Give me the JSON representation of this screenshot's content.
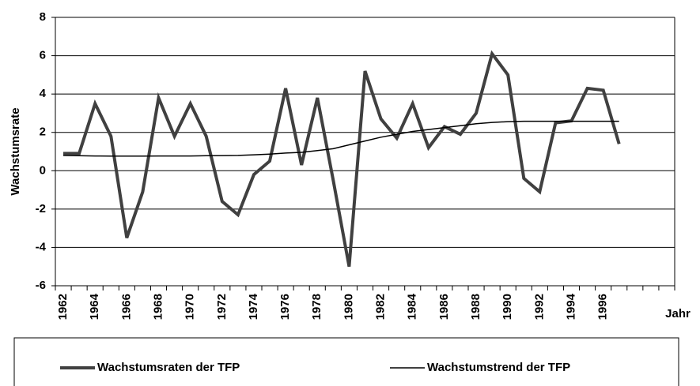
{
  "chart_data": {
    "type": "line",
    "y_label": "Wachstumsrate",
    "x_label": "Jahr",
    "categories": [
      "1962",
      null,
      "1964",
      null,
      "1966",
      null,
      "1968",
      null,
      "1970",
      null,
      "1972",
      null,
      "1974",
      null,
      "1976",
      null,
      "1978",
      null,
      "1980",
      null,
      "1982",
      null,
      "1984",
      null,
      "1986",
      null,
      "1988",
      null,
      "1990",
      null,
      "1992",
      null,
      "1994",
      null,
      "1996",
      null,
      null,
      null,
      null
    ],
    "series": [
      {
        "name": "Wachstumsraten der TFP",
        "color": "#404040",
        "width": 4,
        "values": [
          0.9,
          0.9,
          3.5,
          1.8,
          -3.5,
          -1.1,
          3.8,
          1.8,
          3.5,
          1.8,
          -1.6,
          -2.3,
          -0.2,
          0.5,
          4.3,
          0.3,
          3.8,
          -0.5,
          -5.0,
          5.2,
          2.7,
          1.7,
          3.5,
          1.2,
          2.3,
          1.9,
          3.0,
          6.1,
          5.0,
          -0.4,
          -1.1,
          2.5,
          2.6,
          4.3,
          4.2,
          1.4,
          null,
          null,
          null
        ]
      },
      {
        "name": "Wachstumstrend der TFP",
        "color": "#000000",
        "width": 1.5,
        "values": [
          0.8,
          0.78,
          0.77,
          0.76,
          0.76,
          0.76,
          0.77,
          0.77,
          0.77,
          0.78,
          0.79,
          0.8,
          0.83,
          0.87,
          0.92,
          0.96,
          1.05,
          1.15,
          1.35,
          1.55,
          1.75,
          1.9,
          2.05,
          2.15,
          2.25,
          2.35,
          2.45,
          2.52,
          2.56,
          2.58,
          2.58,
          2.58,
          2.58,
          2.58,
          2.58,
          2.58,
          null,
          null,
          null
        ]
      }
    ],
    "ylim": [
      -6,
      8
    ],
    "yticks": [
      -6,
      -4,
      -2,
      0,
      2,
      4,
      6,
      8
    ],
    "grid": true
  }
}
